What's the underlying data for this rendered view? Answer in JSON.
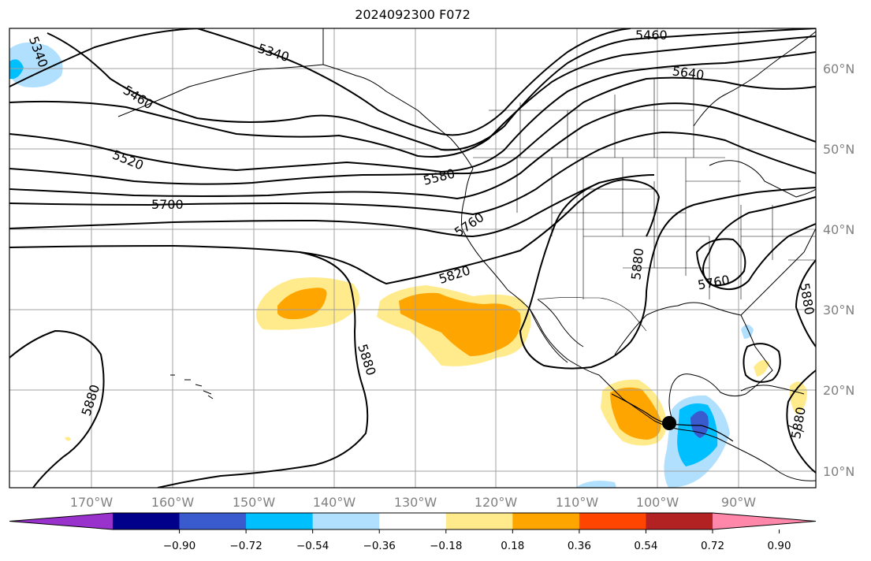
{
  "title": "2024092300 F072",
  "map": {
    "lat_labels": [
      "60°N",
      "50°N",
      "40°N",
      "30°N",
      "20°N",
      "10°N"
    ],
    "lon_labels": [
      "170°W",
      "160°W",
      "150°W",
      "140°W",
      "130°W",
      "120°W",
      "110°W",
      "100°W",
      "90°W"
    ],
    "contour_labels": [
      "5340",
      "5340",
      "5460",
      "5460",
      "5520",
      "5580",
      "5640",
      "5700",
      "5760",
      "5760",
      "5820",
      "5880",
      "5880",
      "5880",
      "5880",
      "5880"
    ],
    "marker": "storm-center"
  },
  "colorbar": {
    "colors": [
      "#9932cc",
      "#00008b",
      "#3a5bcd",
      "#00bfff",
      "#b0e0fe",
      "#ffffff",
      "#ffeb8c",
      "#ffa500",
      "#ff4500",
      "#b22222",
      "#ff88aa"
    ],
    "ticks": [
      "−0.90",
      "−0.72",
      "−0.54",
      "−0.36",
      "−0.18",
      "0.18",
      "0.36",
      "0.54",
      "0.72",
      "0.90"
    ]
  }
}
